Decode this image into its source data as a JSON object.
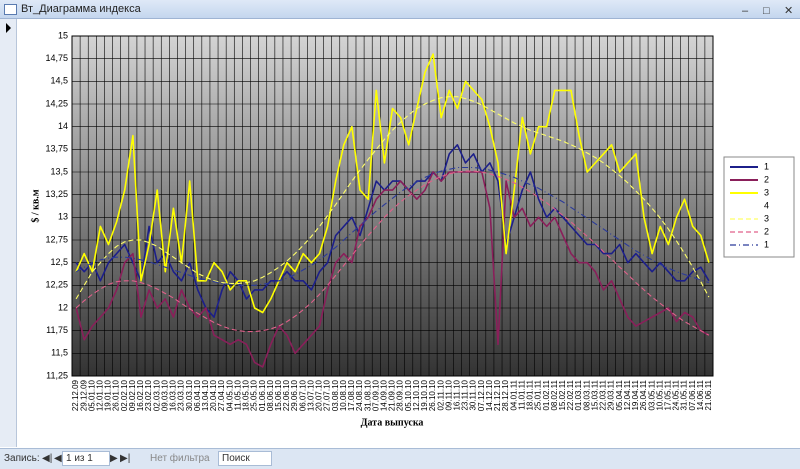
{
  "window": {
    "title": "Вт_Диаграмма индекса"
  },
  "status_bar": {
    "record_label": "Запись:",
    "record_position": "1 из 1",
    "filter": "Нет фильтра",
    "search": "Поиск"
  },
  "chart_data": {
    "type": "line",
    "y_label": "$ / кв.м",
    "x_label": "Дата выпуска",
    "categories": [
      "22.12.09",
      "29.12.09",
      "05.01.10",
      "12.01.10",
      "19.01.10",
      "26.01.10",
      "02.02.10",
      "09.02.10",
      "16.02.10",
      "23.02.10",
      "02.03.10",
      "09.03.10",
      "16.03.10",
      "23.03.10",
      "30.03.10",
      "06.04.10",
      "13.04.10",
      "20.04.10",
      "27.04.10",
      "04.05.10",
      "11.05.10",
      "18.05.10",
      "25.05.10",
      "01.06.10",
      "08.06.10",
      "15.06.10",
      "22.06.10",
      "29.06.10",
      "06.07.10",
      "13.07.10",
      "20.07.10",
      "27.07.10",
      "03.08.10",
      "10.08.10",
      "17.08.10",
      "24.08.10",
      "31.08.10",
      "07.09.10",
      "14.09.10",
      "21.09.10",
      "28.09.10",
      "05.10.10",
      "12.10.10",
      "19.10.10",
      "26.10.10",
      "02.11.10",
      "09.11.10",
      "16.11.10",
      "23.11.10",
      "30.11.10",
      "07.12.10",
      "14.12.10",
      "21.12.10",
      "28.12.10",
      "04.01.11",
      "11.01.11",
      "18.01.11",
      "25.01.11",
      "01.02.11",
      "08.02.11",
      "15.02.11",
      "22.02.11",
      "01.03.11",
      "08.03.11",
      "15.03.11",
      "22.03.11",
      "29.03.11",
      "05.04.11",
      "12.04.11",
      "19.04.11",
      "26.04.11",
      "03.05.11",
      "10.05.11",
      "17.05.11",
      "24.05.11",
      "31.05.11",
      "07.06.11",
      "14.06.11",
      "21.06.11"
    ],
    "series": [
      {
        "name": "1",
        "color": "#1c1f8a",
        "style": "solid",
        "values": [
          12.5,
          12.4,
          12.5,
          12.3,
          12.5,
          12.6,
          12.7,
          12.5,
          12.3,
          12.9,
          12.5,
          12.6,
          12.4,
          12.3,
          12.5,
          12.2,
          12.0,
          11.9,
          12.2,
          12.4,
          12.3,
          12.1,
          12.2,
          12.2,
          12.3,
          12.3,
          12.4,
          12.3,
          12.3,
          12.2,
          12.4,
          12.5,
          12.8,
          12.9,
          13.0,
          12.8,
          13.1,
          13.4,
          13.3,
          13.4,
          13.4,
          13.3,
          13.4,
          13.4,
          13.5,
          13.4,
          13.7,
          13.8,
          13.6,
          13.7,
          13.5,
          13.6,
          13.4,
          12.7,
          13.0,
          13.3,
          13.5,
          13.2,
          13.0,
          13.1,
          13.0,
          12.9,
          12.8,
          12.7,
          12.7,
          12.6,
          12.6,
          12.7,
          12.5,
          12.6,
          12.5,
          12.4,
          12.5,
          12.4,
          12.3,
          12.3,
          12.4,
          12.45,
          12.3
        ]
      },
      {
        "name": "2",
        "color": "#8a1f5a",
        "style": "solid",
        "values": [
          12.0,
          11.65,
          11.8,
          11.9,
          12.0,
          12.2,
          12.5,
          12.6,
          11.9,
          12.2,
          12.0,
          12.1,
          11.9,
          12.2,
          12.0,
          11.9,
          12.0,
          11.7,
          11.65,
          11.6,
          11.65,
          11.6,
          11.4,
          11.35,
          11.6,
          11.8,
          11.7,
          11.5,
          11.6,
          11.7,
          11.8,
          12.2,
          12.5,
          12.6,
          12.5,
          12.9,
          13.0,
          13.2,
          13.3,
          13.3,
          13.4,
          13.3,
          13.2,
          13.3,
          13.5,
          13.4,
          13.5,
          13.5,
          13.5,
          13.5,
          13.5,
          13.1,
          11.6,
          13.4,
          13.0,
          13.1,
          12.9,
          13.0,
          12.9,
          13.0,
          12.8,
          12.6,
          12.5,
          12.5,
          12.4,
          12.2,
          12.3,
          12.1,
          11.9,
          11.8,
          11.85,
          11.9,
          11.95,
          12.0,
          11.85,
          11.95,
          11.9,
          11.75,
          11.7
        ]
      },
      {
        "name": "3",
        "color": "#ffff00",
        "style": "solid",
        "values": [
          12.4,
          12.6,
          12.4,
          12.9,
          12.7,
          12.95,
          13.3,
          13.9,
          12.3,
          12.7,
          13.3,
          12.4,
          13.1,
          12.5,
          13.4,
          12.3,
          12.3,
          12.5,
          12.4,
          12.2,
          12.3,
          12.3,
          12.0,
          11.95,
          12.1,
          12.3,
          12.5,
          12.4,
          12.6,
          12.5,
          12.6,
          12.9,
          13.4,
          13.8,
          14.0,
          13.3,
          13.2,
          14.4,
          13.6,
          14.2,
          14.1,
          13.8,
          14.2,
          14.6,
          14.8,
          14.1,
          14.4,
          14.2,
          14.5,
          14.4,
          14.3,
          14.0,
          13.6,
          12.6,
          13.3,
          14.1,
          13.7,
          14.0,
          14.0,
          14.4,
          14.4,
          14.4,
          13.9,
          13.5,
          13.6,
          13.7,
          13.8,
          13.5,
          13.6,
          13.7,
          13.0,
          12.6,
          12.9,
          12.7,
          13.0,
          13.2,
          12.9,
          12.8,
          12.5
        ]
      },
      {
        "name": "4",
        "color": "#ffffff",
        "style": "solid",
        "values": [
          null,
          null,
          null,
          null,
          null,
          null,
          null,
          null,
          null,
          null,
          null,
          null,
          null,
          null,
          null,
          null,
          null,
          null,
          null,
          null,
          null,
          null,
          null,
          null,
          null,
          null,
          null,
          null,
          null,
          null,
          null,
          null,
          null,
          null,
          null,
          null,
          null,
          null,
          null,
          null,
          null,
          null,
          null,
          null,
          null,
          null,
          null,
          null,
          null,
          null,
          null,
          null,
          null,
          null,
          null,
          null,
          null,
          null,
          null,
          null,
          null,
          null,
          null,
          null,
          null,
          null,
          null,
          null,
          null,
          null,
          null,
          null,
          null,
          null,
          null,
          null,
          null,
          null,
          null
        ]
      },
      {
        "name": "3",
        "color": "#ffff66",
        "style": "dashed",
        "values": [
          12.1,
          12.25,
          12.4,
          12.5,
          12.6,
          12.68,
          12.73,
          12.75,
          12.75,
          12.72,
          12.68,
          12.62,
          12.56,
          12.5,
          12.44,
          12.38,
          12.34,
          12.3,
          12.28,
          12.27,
          12.27,
          12.28,
          12.3,
          12.34,
          12.39,
          12.45,
          12.52,
          12.6,
          12.69,
          12.79,
          12.9,
          13.02,
          13.14,
          13.27,
          13.4,
          13.52,
          13.64,
          13.75,
          13.86,
          13.96,
          14.05,
          14.13,
          14.2,
          14.25,
          14.29,
          14.32,
          14.33,
          14.33,
          14.31,
          14.28,
          14.24,
          14.19,
          14.14,
          14.09,
          14.04,
          14.0,
          13.96,
          13.93,
          13.9,
          13.87,
          13.84,
          13.8,
          13.76,
          13.71,
          13.66,
          13.6,
          13.53,
          13.46,
          13.38,
          13.29,
          13.2,
          13.1,
          12.99,
          12.87,
          12.74,
          12.6,
          12.45,
          12.29,
          12.12
        ]
      },
      {
        "name": "2",
        "color": "#e0608a",
        "style": "dashed",
        "values": [
          12.0,
          12.08,
          12.15,
          12.21,
          12.26,
          12.29,
          12.3,
          12.3,
          12.28,
          12.25,
          12.21,
          12.16,
          12.11,
          12.05,
          11.99,
          11.94,
          11.89,
          11.84,
          11.8,
          11.77,
          11.75,
          11.74,
          11.74,
          11.75,
          11.77,
          11.8,
          11.85,
          11.91,
          11.98,
          12.06,
          12.15,
          12.25,
          12.36,
          12.47,
          12.58,
          12.69,
          12.8,
          12.9,
          13.0,
          13.09,
          13.17,
          13.24,
          13.3,
          13.36,
          13.41,
          13.45,
          13.48,
          13.5,
          13.51,
          13.51,
          13.5,
          13.48,
          13.45,
          13.42,
          13.38,
          13.33,
          13.28,
          13.22,
          13.16,
          13.09,
          13.02,
          12.95,
          12.87,
          12.79,
          12.71,
          12.62,
          12.54,
          12.45,
          12.37,
          12.28,
          12.2,
          12.12,
          12.05,
          11.98,
          11.91,
          11.85,
          11.8,
          11.75,
          11.7
        ]
      },
      {
        "name": "1",
        "color": "#2a3a9a",
        "style": "dash-dot",
        "values": [
          12.4,
          12.45,
          12.5,
          12.53,
          12.55,
          12.56,
          12.56,
          12.55,
          12.53,
          12.51,
          12.48,
          12.45,
          12.42,
          12.39,
          12.36,
          12.33,
          12.31,
          12.29,
          12.27,
          12.26,
          12.25,
          12.25,
          12.25,
          12.26,
          12.28,
          12.3,
          12.33,
          12.37,
          12.42,
          12.47,
          12.53,
          12.6,
          12.67,
          12.75,
          12.83,
          12.91,
          12.99,
          13.07,
          13.14,
          13.21,
          13.28,
          13.34,
          13.39,
          13.44,
          13.48,
          13.51,
          13.53,
          13.55,
          13.55,
          13.55,
          13.54,
          13.52,
          13.5,
          13.47,
          13.44,
          13.4,
          13.36,
          13.32,
          13.27,
          13.22,
          13.17,
          13.11,
          13.05,
          12.99,
          12.93,
          12.87,
          12.81,
          12.75,
          12.69,
          12.63,
          12.58,
          12.53,
          12.48,
          12.44,
          12.4,
          12.37,
          12.34,
          12.31,
          12.28
        ]
      }
    ],
    "ylim": [
      11.25,
      15
    ],
    "yticks": [
      {
        "value": 11.25,
        "label": "11,25"
      },
      {
        "value": 11.5,
        "label": "11,5"
      },
      {
        "value": 11.75,
        "label": "11,75"
      },
      12,
      {
        "value": 12.25,
        "label": "12,25"
      },
      {
        "value": 12.5,
        "label": "12,5"
      },
      {
        "value": 12.75,
        "label": "12,75"
      },
      13,
      {
        "value": 13.25,
        "label": "13,25"
      },
      {
        "value": 13.5,
        "label": "13,5"
      },
      {
        "value": 13.75,
        "label": "13,75"
      },
      14,
      {
        "value": 14.25,
        "label": "14,25"
      },
      {
        "value": 14.5,
        "label": "14,5"
      },
      {
        "value": 14.75,
        "label": "14,75"
      },
      15
    ],
    "grid": true,
    "legend": "right"
  }
}
